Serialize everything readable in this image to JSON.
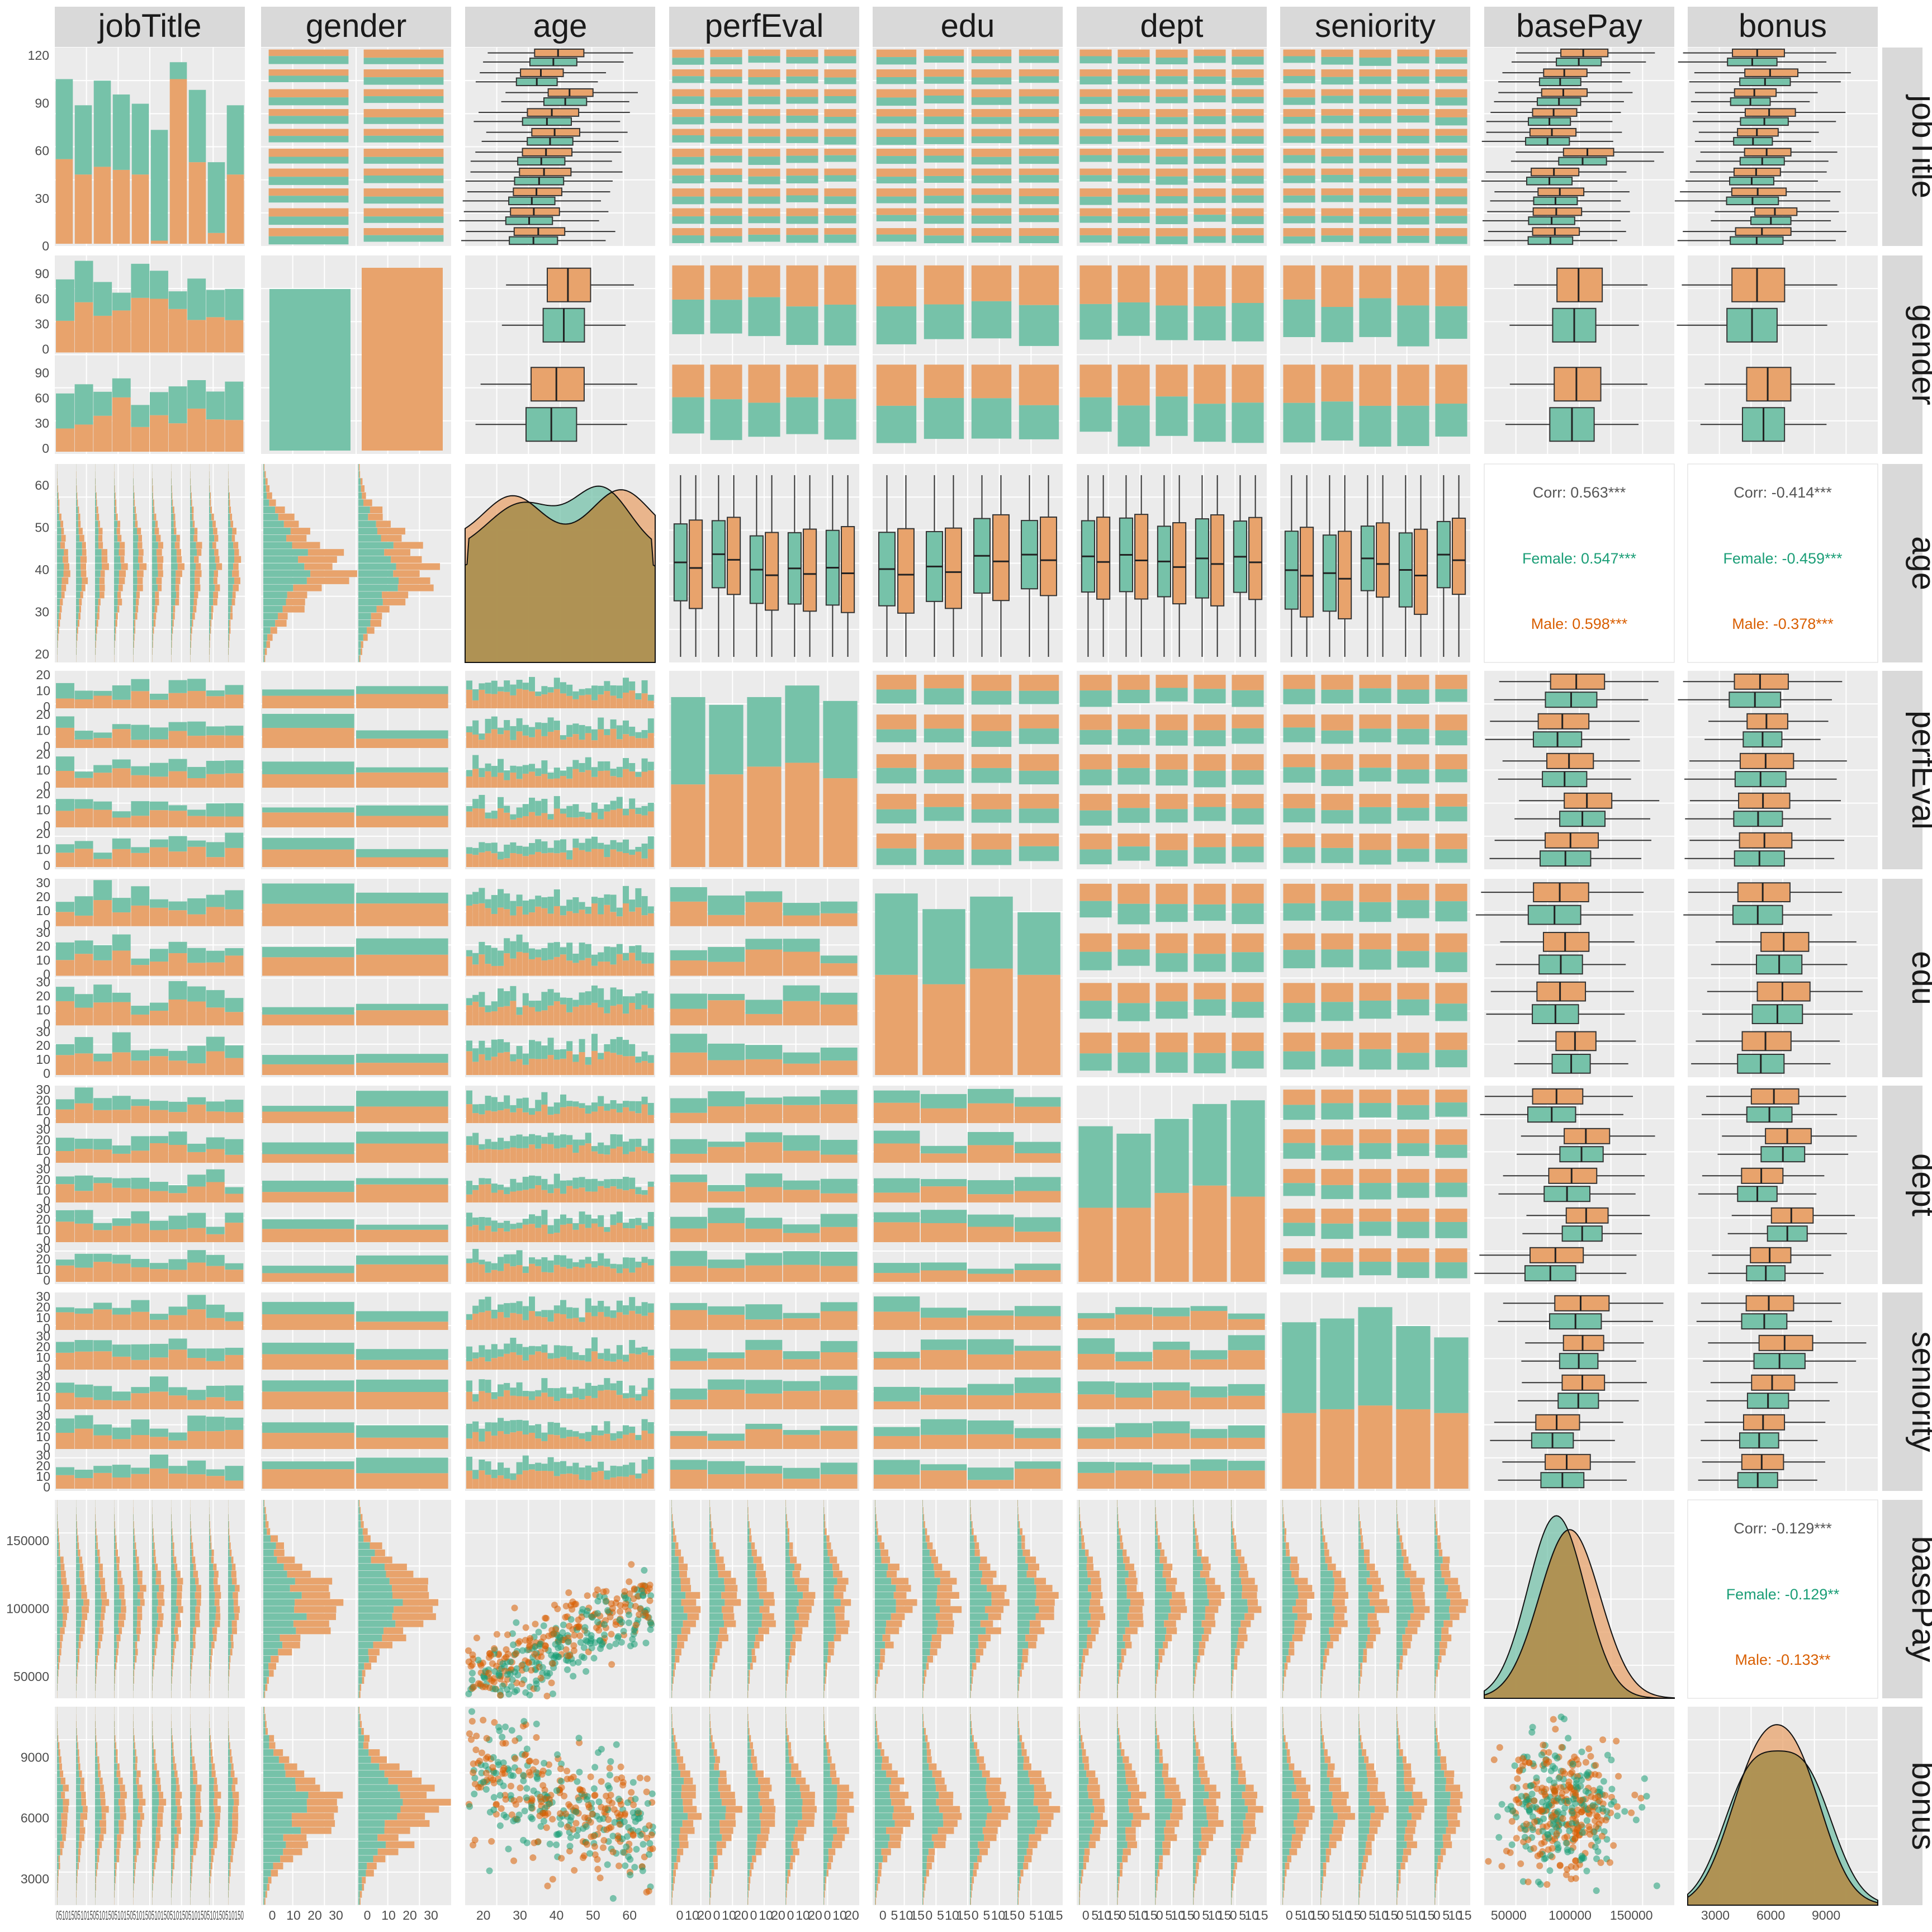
{
  "chart_data": {
    "type": "scatter",
    "variables": [
      "jobTitle",
      "gender",
      "age",
      "perfEval",
      "edu",
      "dept",
      "seniority",
      "basePay",
      "bonus"
    ],
    "group_colors": {
      "Female": "#1b9e77",
      "Male": "#d95f02"
    },
    "female_fill": "#76c2a9",
    "male_fill": "#e8a36c",
    "overlap_fill": "#a38a45",
    "panel_bg": "#ebebeb",
    "strip_bg": "#d9d9d9",
    "diagonal": {
      "jobTitle": {
        "type": "stacked_bar",
        "counts_female": [
          52,
          45,
          56,
          49,
          46,
          72,
          11,
          47,
          46,
          45
        ],
        "counts_male": [
          55,
          45,
          50,
          48,
          45,
          2,
          107,
          53,
          7,
          45
        ],
        "ylim": [
          0,
          120
        ],
        "yticks": [
          0,
          30,
          60,
          90,
          120
        ]
      },
      "gender": {
        "type": "bar",
        "categories": [
          "Female",
          "Male"
        ],
        "counts": [
          468,
          532
        ]
      },
      "age": {
        "type": "density",
        "groups": [
          "Female",
          "Male"
        ]
      },
      "perfEval": {
        "type": "stacked_bar",
        "counts_female": [
          113,
          90,
          90,
          100,
          100
        ],
        "counts_male": [
          107,
          120,
          130,
          135,
          115
        ]
      },
      "edu": {
        "type": "stacked_bar",
        "counts_female": [
          130,
          120,
          115,
          100
        ],
        "counts_male": [
          160,
          145,
          170,
          160
        ]
      },
      "dept": {
        "type": "stacked_bar",
        "counts_female": [
          110,
          100,
          100,
          110,
          130
        ],
        "counts_male": [
          100,
          100,
          120,
          130,
          115
        ]
      },
      "seniority": {
        "type": "stacked_bar",
        "counts_female": [
          120,
          120,
          130,
          110,
          100
        ],
        "counts_male": [
          100,
          105,
          110,
          105,
          100
        ]
      },
      "basePay": {
        "type": "density",
        "groups": [
          "Female",
          "Male"
        ]
      },
      "bonus": {
        "type": "density",
        "groups": [
          "Female",
          "Male"
        ]
      }
    },
    "correlations": {
      "age-basePay": {
        "overall": "Corr: 0.563***",
        "female": "Female: 0.547***",
        "male": "Male: 0.598***"
      },
      "age-bonus": {
        "overall": "Corr: -0.414***",
        "female": "Female: -0.459***",
        "male": "Male: -0.378***"
      },
      "basePay-bonus": {
        "overall": "Corr: -0.129***",
        "female": "Female: -0.129**",
        "male": "Male: -0.133**"
      }
    },
    "axes": {
      "jobTitle_count": {
        "ylim": [
          0,
          120
        ],
        "ticks": [
          "0",
          "30",
          "60",
          "90",
          "120"
        ]
      },
      "gender_count": {
        "ylim": [
          0,
          105
        ],
        "ticks": [
          "0",
          "30",
          "60",
          "90"
        ]
      },
      "age": {
        "range": [
          18,
          65
        ],
        "ticks": [
          "20",
          "30",
          "40",
          "50",
          "60"
        ]
      },
      "basePay": {
        "range": [
          34000,
          180000
        ],
        "ticks": [
          "50000",
          "100000",
          "150000"
        ]
      },
      "bonus": {
        "range": [
          1700,
          11500
        ],
        "ticks": [
          "3000",
          "6000",
          "9000"
        ]
      },
      "gender_hist_x": {
        "ticks_female": [
          "0",
          "10",
          "20",
          "30"
        ],
        "ticks_male": [
          "0",
          "10",
          "20",
          "30"
        ]
      },
      "perfEval_hist_x": {
        "ticks": [
          "0",
          "10",
          "20",
          "0",
          "10",
          "20",
          "0",
          "10",
          "20",
          "0",
          "10",
          "20",
          "0",
          "10",
          "20"
        ]
      },
      "edu_hist_x": {
        "ticks": [
          "0",
          "5",
          "10",
          "15",
          "0",
          "5",
          "10",
          "15",
          "0",
          "5",
          "10",
          "15",
          "0",
          "5",
          "10",
          "15"
        ]
      },
      "dept_hist_x": {
        "ticks": [
          "0",
          "5",
          "10",
          "15",
          "0",
          "5",
          "10",
          "15",
          "0",
          "5",
          "10",
          "15",
          "0",
          "5",
          "10",
          "15",
          "0",
          "5",
          "10",
          "15"
        ]
      },
      "seniority_hist_x": {
        "ticks": [
          "0",
          "5",
          "10",
          "15",
          "0",
          "5",
          "10",
          "15",
          "0",
          "5",
          "10",
          "15",
          "0",
          "5",
          "10",
          "15",
          "0",
          "5",
          "10",
          "15"
        ]
      },
      "facet_count_ticks_sm": [
        "0",
        "10",
        "20"
      ],
      "facet_count_ticks_md": [
        "0",
        "10",
        "20",
        "30"
      ],
      "jobTitle_bottom_ticks": [
        "0510150510150510150510150510150510150510150510150510150510150"
      ]
    }
  }
}
